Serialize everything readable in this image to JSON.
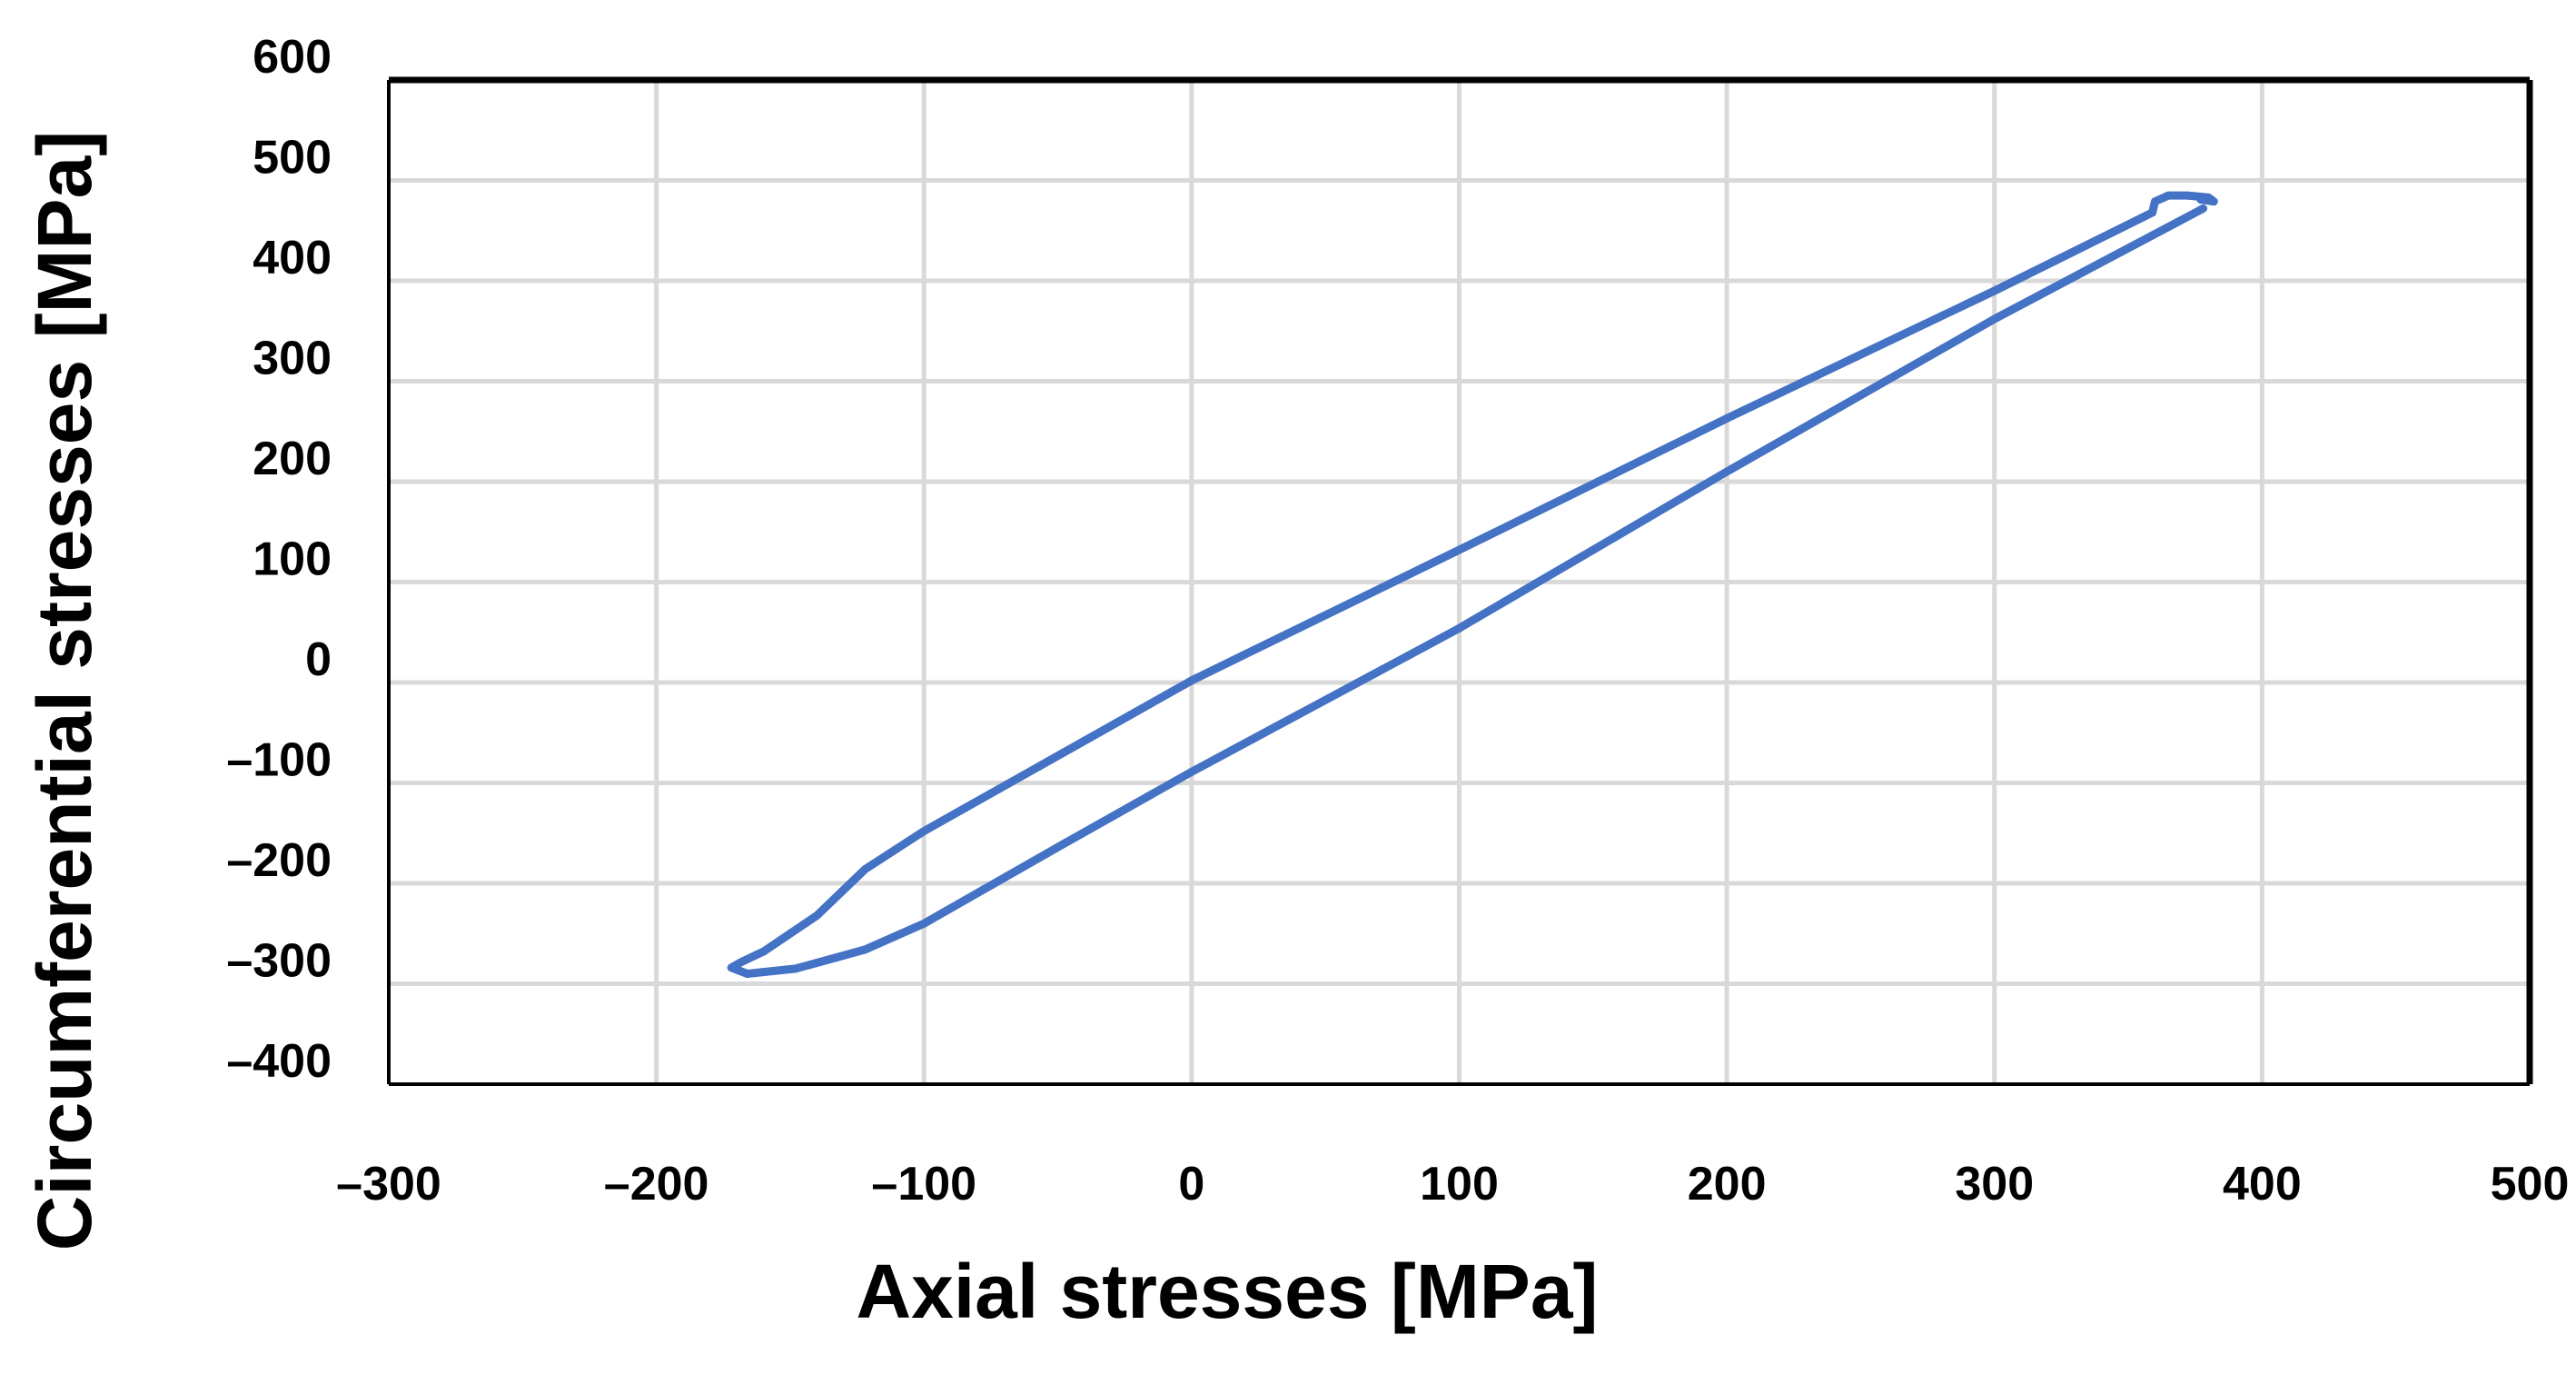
{
  "chart_data": {
    "type": "line",
    "title": "",
    "xlabel": "Axial stresses [MPa]",
    "ylabel": "Circumferential stresses [MPa]",
    "xlim": [
      -300,
      500
    ],
    "ylim": [
      -400,
      600
    ],
    "xticks": [
      -300,
      -200,
      -100,
      0,
      100,
      200,
      300,
      400,
      500
    ],
    "yticks": [
      600,
      500,
      400,
      300,
      200,
      100,
      0,
      -100,
      -200,
      -300,
      -400
    ],
    "xtick_labels": [
      "–300",
      "–200",
      "–100",
      "0",
      "100",
      "200",
      "300",
      "400",
      "500"
    ],
    "ytick_labels": [
      "600",
      "500",
      "400",
      "300",
      "200",
      "100",
      "0",
      "–100",
      "–200",
      "–300",
      "–400"
    ],
    "grid": true,
    "legend": "none",
    "series_color": "#4472c4",
    "series": [
      {
        "x": [
          378,
          300,
          200,
          100,
          0,
          -50,
          -100,
          -122,
          -148,
          -166,
          -172,
          -168,
          -160,
          -140,
          -122,
          -100,
          0,
          100,
          200,
          300,
          356,
          359,
          360,
          365,
          372,
          380,
          382,
          377
        ],
        "y": [
          472,
          362,
          210,
          54,
          -89,
          -164,
          -240,
          -266,
          -285,
          -290,
          -284,
          -278,
          -268,
          -232,
          -186,
          -148,
          2,
          132,
          263,
          390,
          464,
          468,
          479,
          485,
          485,
          483,
          479,
          481
        ]
      }
    ]
  }
}
